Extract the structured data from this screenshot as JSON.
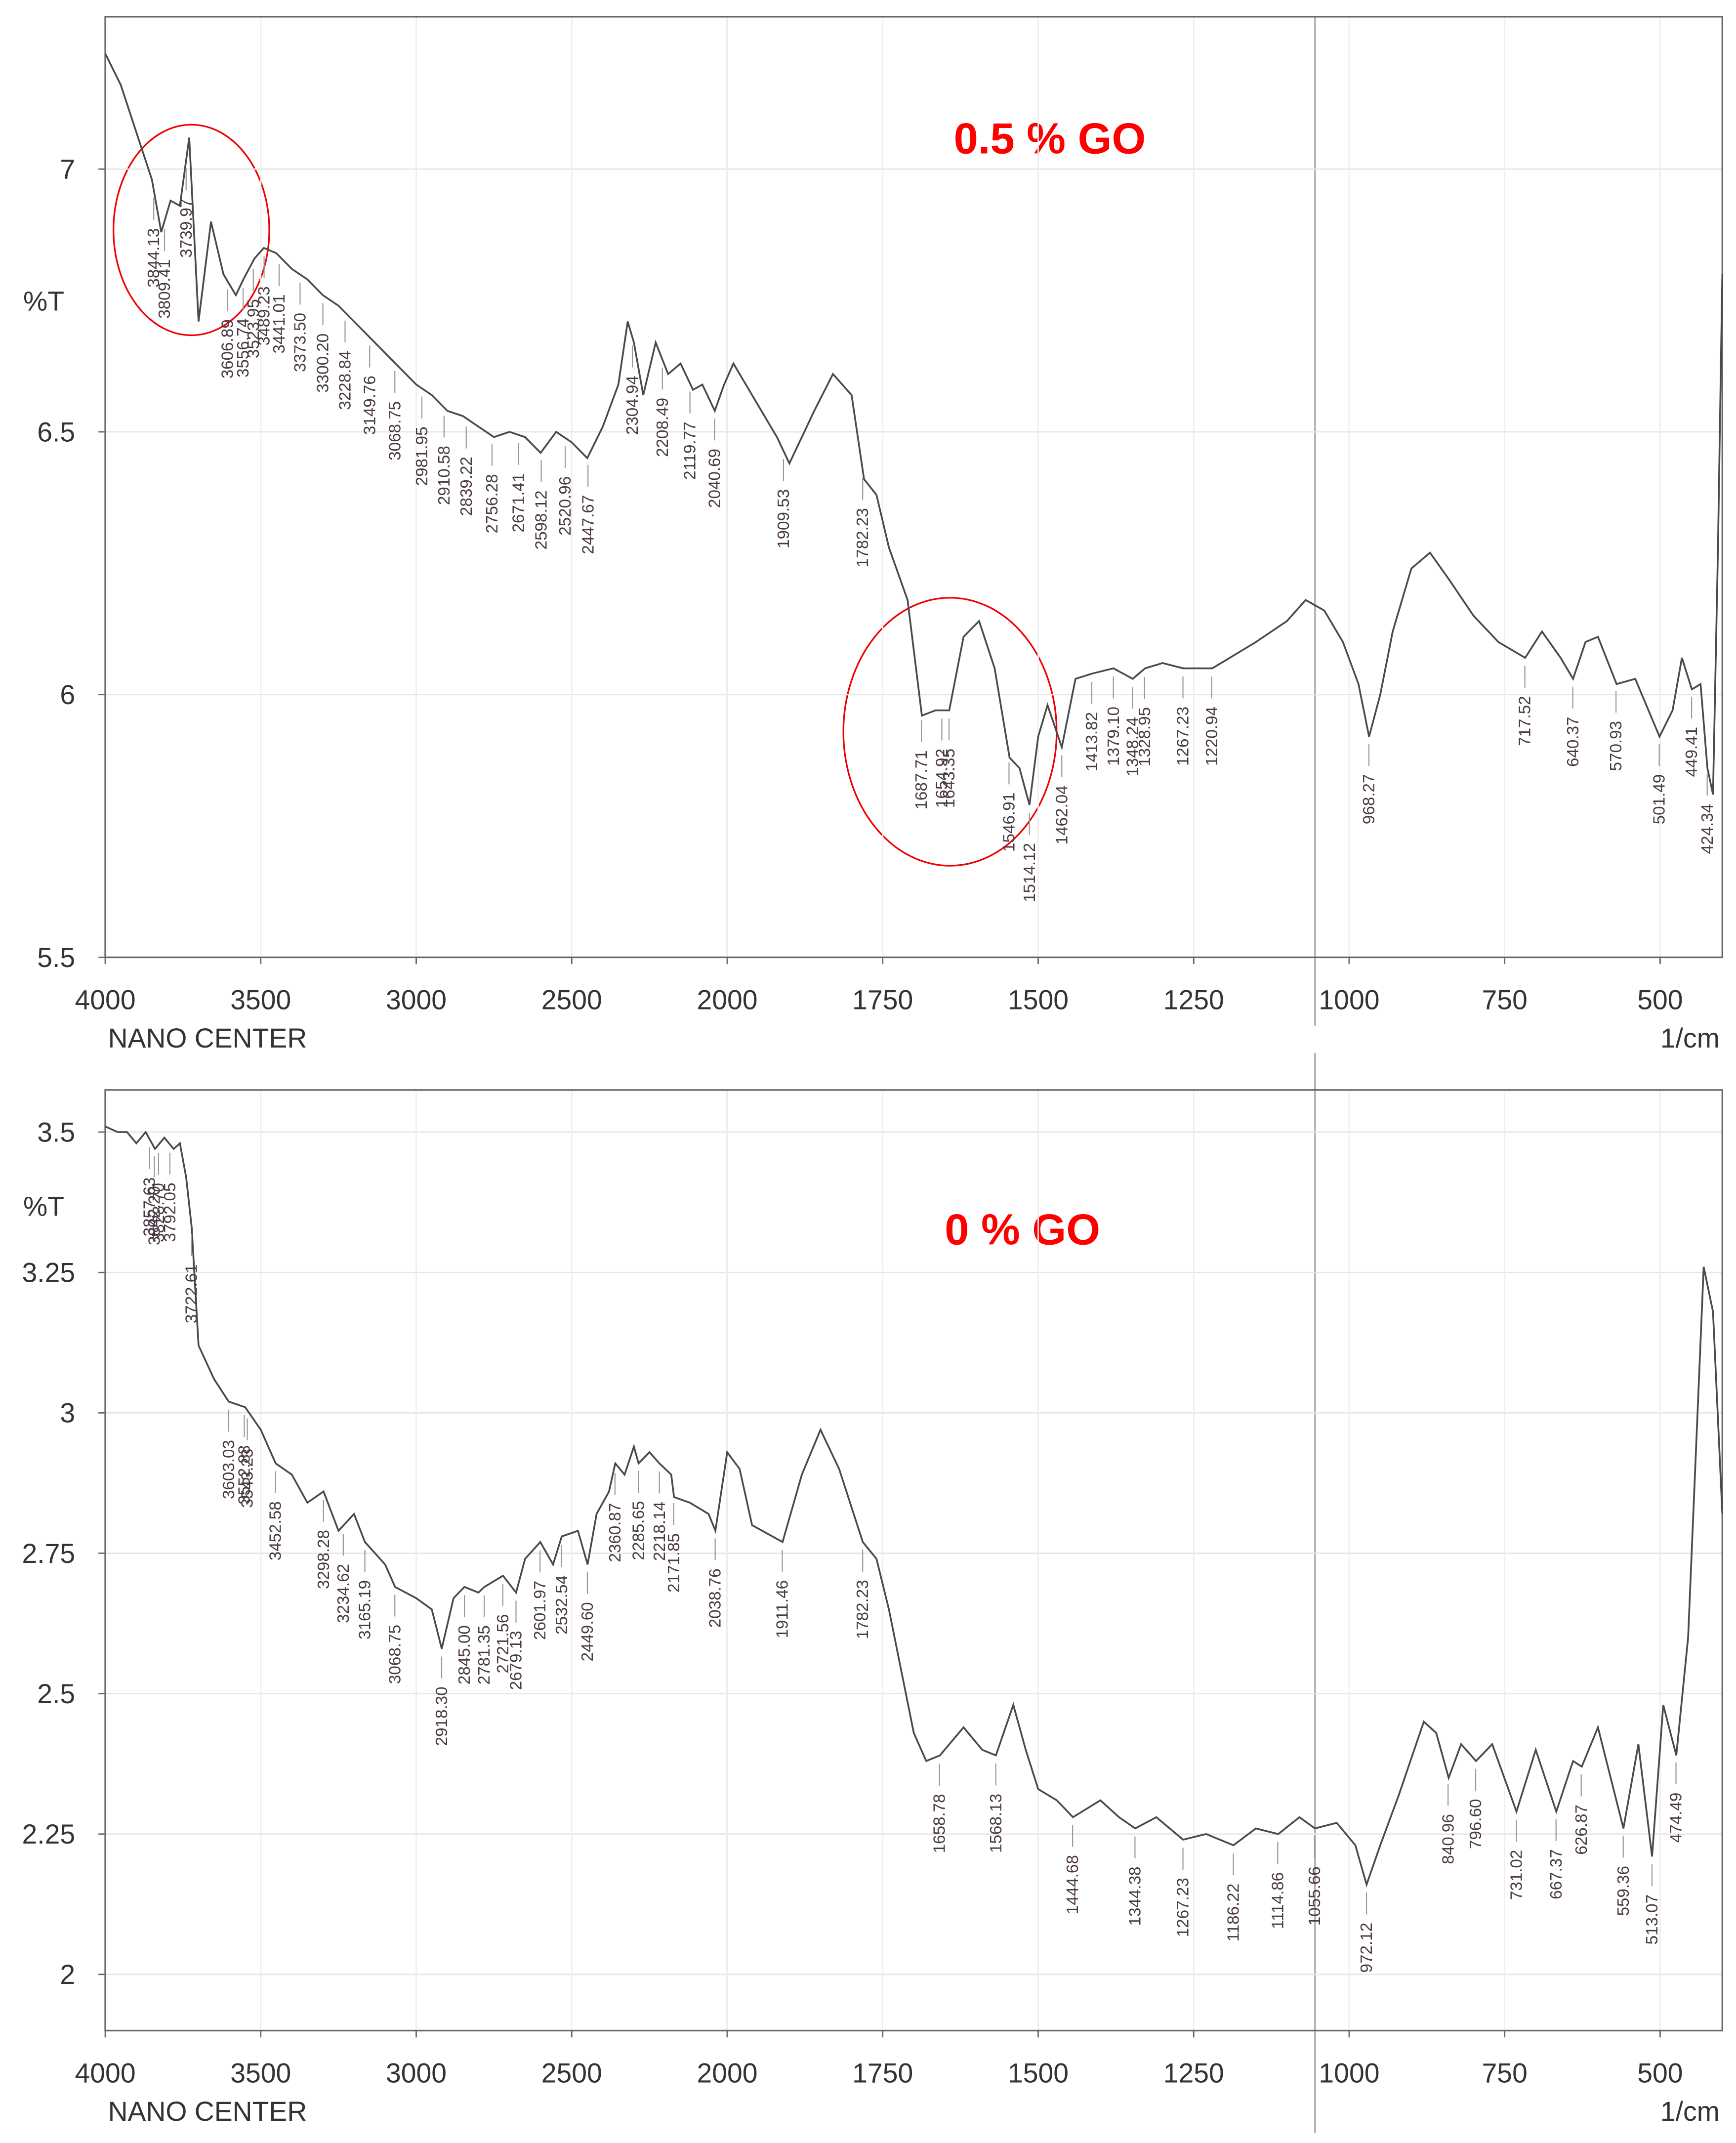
{
  "chart_data": [
    {
      "type": "line",
      "annotation": "0.5 % GO",
      "ylabel": "%T",
      "xlabel": "1/cm",
      "source": "NANO CENTER",
      "color": "#4a4a4a",
      "grid": true,
      "xlim": [
        4000,
        400
      ],
      "xticks": [
        4000,
        3500,
        3000,
        2500,
        2000,
        1750,
        1500,
        1250,
        1000,
        750,
        500
      ],
      "ylim": [
        5.5,
        7.29
      ],
      "yticks": [
        5.5,
        6,
        6.5,
        7
      ],
      "x": [
        4000,
        3950,
        3900,
        3850,
        3820,
        3790,
        3760,
        3730,
        3700,
        3660,
        3620,
        3580,
        3556,
        3520,
        3490,
        3450,
        3400,
        3350,
        3300,
        3250,
        3200,
        3150,
        3100,
        3050,
        3000,
        2950,
        2900,
        2850,
        2800,
        2750,
        2700,
        2650,
        2600,
        2550,
        2500,
        2450,
        2400,
        2350,
        2320,
        2300,
        2270,
        2230,
        2190,
        2150,
        2110,
        2080,
        2040,
        2010,
        1990,
        1970,
        1920,
        1900,
        1860,
        1830,
        1800,
        1780,
        1760,
        1740,
        1710,
        1687,
        1665,
        1643,
        1620,
        1595,
        1570,
        1546,
        1530,
        1514,
        1500,
        1485,
        1462,
        1440,
        1413,
        1379,
        1348,
        1328,
        1300,
        1267,
        1220,
        1150,
        1100,
        1070,
        1040,
        1010,
        985,
        968,
        950,
        930,
        900,
        870,
        840,
        800,
        760,
        717,
        690,
        660,
        640,
        620,
        600,
        570,
        540,
        501,
        480,
        465,
        449,
        435,
        424,
        415,
        407,
        400
      ],
      "values": [
        7.22,
        7.16,
        7.07,
        6.98,
        6.88,
        6.94,
        6.93,
        7.06,
        6.71,
        6.9,
        6.8,
        6.76,
        6.79,
        6.83,
        6.85,
        6.84,
        6.81,
        6.79,
        6.76,
        6.74,
        6.71,
        6.68,
        6.65,
        6.62,
        6.59,
        6.57,
        6.54,
        6.53,
        6.51,
        6.49,
        6.5,
        6.49,
        6.46,
        6.5,
        6.48,
        6.45,
        6.51,
        6.59,
        6.71,
        6.67,
        6.57,
        6.67,
        6.61,
        6.63,
        6.58,
        6.59,
        6.54,
        6.59,
        6.63,
        6.59,
        6.49,
        6.44,
        6.54,
        6.61,
        6.57,
        6.41,
        6.38,
        6.28,
        6.18,
        5.96,
        5.97,
        5.97,
        6.11,
        6.14,
        6.05,
        5.88,
        5.86,
        5.79,
        5.92,
        5.98,
        5.9,
        6.03,
        6.04,
        6.05,
        6.03,
        6.05,
        6.06,
        6.05,
        6.05,
        6.1,
        6.14,
        6.18,
        6.16,
        6.1,
        6.02,
        5.92,
        6.0,
        6.12,
        6.24,
        6.27,
        6.22,
        6.15,
        6.1,
        6.07,
        6.12,
        6.07,
        6.03,
        6.1,
        6.11,
        6.02,
        6.03,
        5.92,
        5.97,
        6.07,
        6.01,
        6.02,
        5.86,
        5.81,
        6.28,
        6.8
      ],
      "peaks": [
        {
          "value": 3844.13,
          "label": "3844.13"
        },
        {
          "value": 3809.41,
          "label": "3809.41"
        },
        {
          "value": 3739.97,
          "label": "3739.97"
        },
        {
          "value": 3606.89,
          "label": "3606.89"
        },
        {
          "value": 3556.74,
          "label": "3556.74"
        },
        {
          "value": 3523.95,
          "label": "3523.95"
        },
        {
          "value": 3489.23,
          "label": "3489.23"
        },
        {
          "value": 3441.01,
          "label": "3441.01"
        },
        {
          "value": 3373.5,
          "label": "3373.50"
        },
        {
          "value": 3300.2,
          "label": "3300.20"
        },
        {
          "value": 3228.84,
          "label": "3228.84"
        },
        {
          "value": 3149.76,
          "label": "3149.76"
        },
        {
          "value": 3068.75,
          "label": "3068.75"
        },
        {
          "value": 2981.95,
          "label": "2981.95"
        },
        {
          "value": 2910.58,
          "label": "2910.58"
        },
        {
          "value": 2839.22,
          "label": "2839.22"
        },
        {
          "value": 2756.28,
          "label": "2756.28"
        },
        {
          "value": 2671.41,
          "label": "2671.41"
        },
        {
          "value": 2598.12,
          "label": "2598.12"
        },
        {
          "value": 2520.96,
          "label": "2520.96"
        },
        {
          "value": 2447.67,
          "label": "2447.67"
        },
        {
          "value": 2304.94,
          "label": "2304.94"
        },
        {
          "value": 2208.49,
          "label": "2208.49"
        },
        {
          "value": 2119.77,
          "label": "2119.77"
        },
        {
          "value": 2040.69,
          "label": "2040.69"
        },
        {
          "value": 1909.53,
          "label": "1909.53"
        },
        {
          "value": 1782.23,
          "label": "1782.23"
        },
        {
          "value": 1687.71,
          "label": "1687.71"
        },
        {
          "value": 1654.92,
          "label": "1654.92"
        },
        {
          "value": 1643.35,
          "label": "1643.35"
        },
        {
          "value": 1546.91,
          "label": "1546.91"
        },
        {
          "value": 1514.12,
          "label": "1514.12"
        },
        {
          "value": 1462.04,
          "label": "1462.04"
        },
        {
          "value": 1413.82,
          "label": "1413.82"
        },
        {
          "value": 1379.1,
          "label": "1379.10"
        },
        {
          "value": 1348.24,
          "label": "1348.24"
        },
        {
          "value": 1328.95,
          "label": "1328.95"
        },
        {
          "value": 1267.23,
          "label": "1267.23"
        },
        {
          "value": 1220.94,
          "label": "1220.94"
        },
        {
          "value": 968.27,
          "label": "968.27"
        },
        {
          "value": 717.52,
          "label": "717.52"
        },
        {
          "value": 640.37,
          "label": "640.37"
        },
        {
          "value": 570.93,
          "label": "570.93"
        },
        {
          "value": 501.49,
          "label": "501.49"
        },
        {
          "value": 449.41,
          "label": "449.41"
        },
        {
          "value": 424.34,
          "label": "424.34"
        }
      ]
    },
    {
      "type": "line",
      "annotation": "0 % GO",
      "ylabel": "%T",
      "xlabel": "1/cm",
      "source": "NANO CENTER",
      "color": "#4a4a4a",
      "grid": true,
      "xlim": [
        4000,
        400
      ],
      "xticks": [
        4000,
        3500,
        3000,
        2500,
        2000,
        1750,
        1500,
        1250,
        1000,
        750,
        500
      ],
      "ylim": [
        1.9,
        3.575
      ],
      "yticks": [
        2,
        2.25,
        2.5,
        2.75,
        3,
        3.25,
        3.5
      ],
      "x": [
        4000,
        3960,
        3930,
        3900,
        3870,
        3840,
        3810,
        3780,
        3760,
        3740,
        3722,
        3700,
        3650,
        3603,
        3550,
        3500,
        3452,
        3400,
        3350,
        3298,
        3250,
        3200,
        3165,
        3100,
        3068,
        3000,
        2950,
        2918,
        2880,
        2845,
        2800,
        2781,
        2721,
        2679,
        2650,
        2601,
        2560,
        2532,
        2480,
        2449,
        2420,
        2380,
        2360,
        2330,
        2300,
        2285,
        2250,
        2218,
        2180,
        2171,
        2120,
        2060,
        2038,
        2000,
        1980,
        1960,
        1911,
        1880,
        1850,
        1820,
        1782,
        1760,
        1740,
        1700,
        1680,
        1658,
        1620,
        1590,
        1568,
        1540,
        1520,
        1500,
        1470,
        1444,
        1400,
        1370,
        1344,
        1310,
        1267,
        1230,
        1186,
        1150,
        1114,
        1080,
        1055,
        1020,
        990,
        972,
        950,
        920,
        880,
        860,
        840,
        820,
        796,
        770,
        731,
        700,
        667,
        640,
        626,
        600,
        559,
        535,
        513,
        495,
        474,
        455,
        430,
        415,
        400
      ],
      "values": [
        3.51,
        3.5,
        3.5,
        3.48,
        3.5,
        3.47,
        3.49,
        3.47,
        3.48,
        3.42,
        3.33,
        3.12,
        3.06,
        3.02,
        3.01,
        2.97,
        2.91,
        2.89,
        2.84,
        2.86,
        2.79,
        2.82,
        2.77,
        2.73,
        2.69,
        2.67,
        2.65,
        2.58,
        2.67,
        2.69,
        2.68,
        2.69,
        2.71,
        2.68,
        2.74,
        2.77,
        2.73,
        2.78,
        2.79,
        2.73,
        2.82,
        2.86,
        2.91,
        2.89,
        2.94,
        2.91,
        2.93,
        2.91,
        2.89,
        2.85,
        2.84,
        2.82,
        2.79,
        2.93,
        2.9,
        2.8,
        2.77,
        2.89,
        2.97,
        2.9,
        2.77,
        2.74,
        2.65,
        2.43,
        2.38,
        2.39,
        2.44,
        2.4,
        2.39,
        2.48,
        2.4,
        2.33,
        2.31,
        2.28,
        2.31,
        2.28,
        2.26,
        2.28,
        2.24,
        2.25,
        2.23,
        2.26,
        2.25,
        2.28,
        2.26,
        2.27,
        2.23,
        2.16,
        2.23,
        2.32,
        2.45,
        2.43,
        2.35,
        2.41,
        2.38,
        2.41,
        2.29,
        2.4,
        2.29,
        2.38,
        2.37,
        2.44,
        2.26,
        2.41,
        2.21,
        2.48,
        2.39,
        2.6,
        3.26,
        3.18,
        2.82
      ],
      "peaks": [
        {
          "value": 3857.63,
          "label": "3857.63"
        },
        {
          "value": 3842.2,
          "label": "3842.20"
        },
        {
          "value": 3828.7,
          "label": "3828.70"
        },
        {
          "value": 3792.05,
          "label": "3792.05"
        },
        {
          "value": 3722.61,
          "label": "3722.61"
        },
        {
          "value": 3603.03,
          "label": "3603.03"
        },
        {
          "value": 3552.88,
          "label": "3552.88"
        },
        {
          "value": 3543.23,
          "label": "3543.23"
        },
        {
          "value": 3452.58,
          "label": "3452.58"
        },
        {
          "value": 3298.28,
          "label": "3298.28"
        },
        {
          "value": 3234.62,
          "label": "3234.62"
        },
        {
          "value": 3165.19,
          "label": "3165.19"
        },
        {
          "value": 3068.75,
          "label": "3068.75"
        },
        {
          "value": 2918.3,
          "label": "2918.30"
        },
        {
          "value": 2845.0,
          "label": "2845.00"
        },
        {
          "value": 2781.35,
          "label": "2781.35"
        },
        {
          "value": 2721.56,
          "label": "2721.56"
        },
        {
          "value": 2679.13,
          "label": "2679.13"
        },
        {
          "value": 2601.97,
          "label": "2601.97"
        },
        {
          "value": 2532.54,
          "label": "2532.54"
        },
        {
          "value": 2449.6,
          "label": "2449.60"
        },
        {
          "value": 2360.87,
          "label": "2360.87"
        },
        {
          "value": 2285.65,
          "label": "2285.65"
        },
        {
          "value": 2218.14,
          "label": "2218.14"
        },
        {
          "value": 2171.85,
          "label": "2171.85"
        },
        {
          "value": 2038.76,
          "label": "2038.76"
        },
        {
          "value": 1911.46,
          "label": "1911.46"
        },
        {
          "value": 1782.23,
          "label": "1782.23"
        },
        {
          "value": 1658.78,
          "label": "1658.78"
        },
        {
          "value": 1568.13,
          "label": "1568.13"
        },
        {
          "value": 1444.68,
          "label": "1444.68"
        },
        {
          "value": 1344.38,
          "label": "1344.38"
        },
        {
          "value": 1267.23,
          "label": "1267.23"
        },
        {
          "value": 1186.22,
          "label": "1186.22"
        },
        {
          "value": 1114.86,
          "label": "1114.86"
        },
        {
          "value": 1055.66,
          "label": "1055.66"
        },
        {
          "value": 972.12,
          "label": "972.12"
        },
        {
          "value": 840.96,
          "label": "840.96"
        },
        {
          "value": 796.6,
          "label": "796.60"
        },
        {
          "value": 731.02,
          "label": "731.02"
        },
        {
          "value": 667.37,
          "label": "667.37"
        },
        {
          "value": 626.87,
          "label": "626.87"
        },
        {
          "value": 559.36,
          "label": "559.36"
        },
        {
          "value": 513.07,
          "label": "513.07"
        },
        {
          "value": 474.49,
          "label": "474.49"
        }
      ]
    }
  ]
}
